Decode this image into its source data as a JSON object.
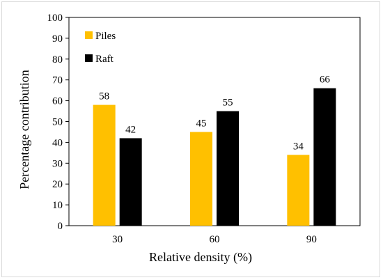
{
  "chart_data": {
    "type": "bar",
    "categories": [
      "30",
      "60",
      "90"
    ],
    "series": [
      {
        "name": "Piles",
        "values": [
          58,
          45,
          34
        ],
        "color": "#FFC000"
      },
      {
        "name": "Raft",
        "values": [
          42,
          55,
          66
        ],
        "color": "#000000"
      }
    ],
    "data_labels": true,
    "title": "",
    "xlabel": "Relative density (%)",
    "ylabel": "Percentage contribution",
    "ylim": [
      0,
      100
    ],
    "yticks": [
      0,
      10,
      20,
      30,
      40,
      50,
      60,
      70,
      80,
      90,
      100
    ],
    "grid": false,
    "legend_position": "top-left"
  }
}
